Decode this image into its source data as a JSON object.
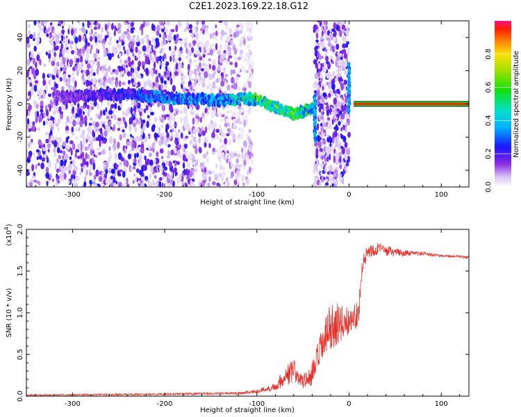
{
  "title": "C2E1.2023.169.22.18.G12",
  "chart_data": [
    {
      "type": "heatmap",
      "name": "spectrogram",
      "xlabel": "Height of straight line (km)",
      "ylabel": "Frequency (Hz)",
      "xlim": [
        -350,
        130
      ],
      "ylim": [
        -50,
        50
      ],
      "xticks": [
        -300,
        -200,
        -100,
        0,
        100
      ],
      "xtick_labels": [
        "-300",
        "-200",
        "-100",
        "0",
        "100"
      ],
      "yticks": [
        -40,
        -20,
        0,
        20,
        40
      ],
      "ytick_labels": [
        "-40",
        "-20",
        "0",
        "20",
        "40"
      ],
      "colorbar": {
        "label": "Normalized spectral amplitude",
        "range": [
          0,
          1
        ],
        "ticks": [
          0.0,
          0.2,
          0.4,
          0.6,
          0.8
        ],
        "tick_labels": [
          "0.0",
          "0.2",
          "0.4",
          "0.6",
          "0.8"
        ]
      },
      "noise_regions_km": [
        [
          -350,
          -105
        ],
        [
          -38,
          0
        ]
      ],
      "main_trace": {
        "x": [
          -320,
          -280,
          -240,
          -220,
          -200,
          -180,
          -160,
          -140,
          -120,
          -100,
          -80,
          -60,
          -45,
          -38
        ],
        "freq_hz": [
          4,
          5,
          6,
          5,
          4,
          3,
          3,
          2,
          3,
          3,
          -2,
          -6,
          -4,
          -3
        ],
        "amplitude": [
          0.15,
          0.2,
          0.25,
          0.3,
          0.35,
          0.35,
          0.35,
          0.4,
          0.45,
          0.55,
          0.6,
          0.55,
          0.5,
          0.5
        ]
      },
      "spikes": [
        {
          "x": -37,
          "freq_from": 5,
          "freq_to": -22
        },
        {
          "x": 0,
          "freq_from": 24,
          "freq_to": -5
        }
      ],
      "carrier": {
        "x_start": 5,
        "x_end": 130,
        "freq_hz": 0,
        "amplitude": 1.0
      }
    },
    {
      "type": "line",
      "name": "snr",
      "xlabel": "Height of straight line (km)",
      "ylabel": "SNR (10 * v/v)",
      "yscale_label": "(x10",
      "yscale_exp": "4",
      "yscale_close": ")",
      "xlim": [
        -350,
        130
      ],
      "ylim": [
        0,
        2.0
      ],
      "xticks": [
        -300,
        -200,
        -100,
        0,
        100
      ],
      "xtick_labels": [
        "-300",
        "-200",
        "-100",
        "0",
        "100"
      ],
      "yticks": [
        0.0,
        0.5,
        1.0,
        1.5,
        2.0
      ],
      "ytick_labels": [
        "0.0",
        "0.5",
        "1.0",
        "1.5",
        "2.0"
      ],
      "color": "#e8302a",
      "envelope": {
        "x": [
          -350,
          -200,
          -120,
          -100,
          -80,
          -70,
          -60,
          -50,
          -40,
          -30,
          -20,
          -10,
          0,
          10,
          15,
          20,
          30,
          40,
          60,
          80,
          100,
          130
        ],
        "base": [
          0.01,
          0.02,
          0.03,
          0.05,
          0.1,
          0.2,
          0.25,
          0.15,
          0.2,
          0.5,
          0.75,
          0.8,
          0.85,
          0.95,
          1.55,
          1.7,
          1.75,
          1.72,
          1.7,
          1.7,
          1.68,
          1.66
        ],
        "noise": [
          0.01,
          0.015,
          0.02,
          0.03,
          0.06,
          0.15,
          0.2,
          0.1,
          0.2,
          0.3,
          0.35,
          0.3,
          0.2,
          0.2,
          0.15,
          0.12,
          0.1,
          0.08,
          0.05,
          0.03,
          0.02,
          0.02
        ]
      }
    }
  ]
}
